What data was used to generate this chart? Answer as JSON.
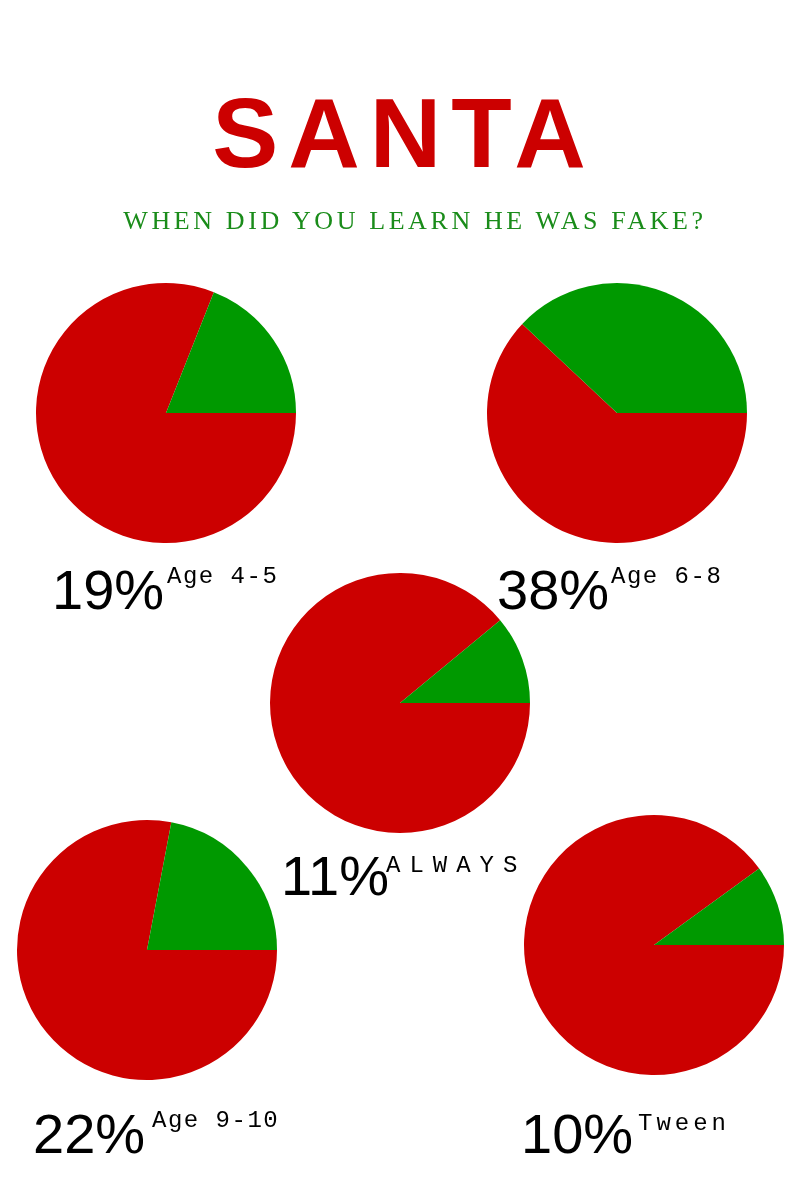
{
  "chart_data": [
    {
      "type": "other",
      "title": "SANTA",
      "subtitle": "WHEN DID YOU LEARN HE WAS FAKE?"
    },
    {
      "type": "pie",
      "title": "Age 4-5",
      "categories": [
        null,
        null
      ],
      "values": [
        81,
        19
      ],
      "colors": [
        "#cc0000",
        "#009900"
      ],
      "annotations": [
        "19%"
      ]
    },
    {
      "type": "pie",
      "title": "Age 6-8",
      "categories": [
        null,
        null
      ],
      "values": [
        62,
        38
      ],
      "colors": [
        "#cc0000",
        "#009900"
      ],
      "annotations": [
        "38%"
      ]
    },
    {
      "type": "pie",
      "title": "ALWAYS",
      "categories": [
        null,
        null
      ],
      "values": [
        89,
        11
      ],
      "colors": [
        "#cc0000",
        "#009900"
      ],
      "annotations": [
        "11%"
      ]
    },
    {
      "type": "pie",
      "title": "Age 9-10",
      "categories": [
        null,
        null
      ],
      "values": [
        78,
        22
      ],
      "colors": [
        "#cc0000",
        "#009900"
      ],
      "annotations": [
        "22%"
      ]
    },
    {
      "type": "pie",
      "title": "Tween",
      "categories": [
        null,
        null
      ],
      "values": [
        90,
        10
      ],
      "colors": [
        "#cc0000",
        "#009900"
      ],
      "annotations": [
        "10%"
      ]
    }
  ]
}
